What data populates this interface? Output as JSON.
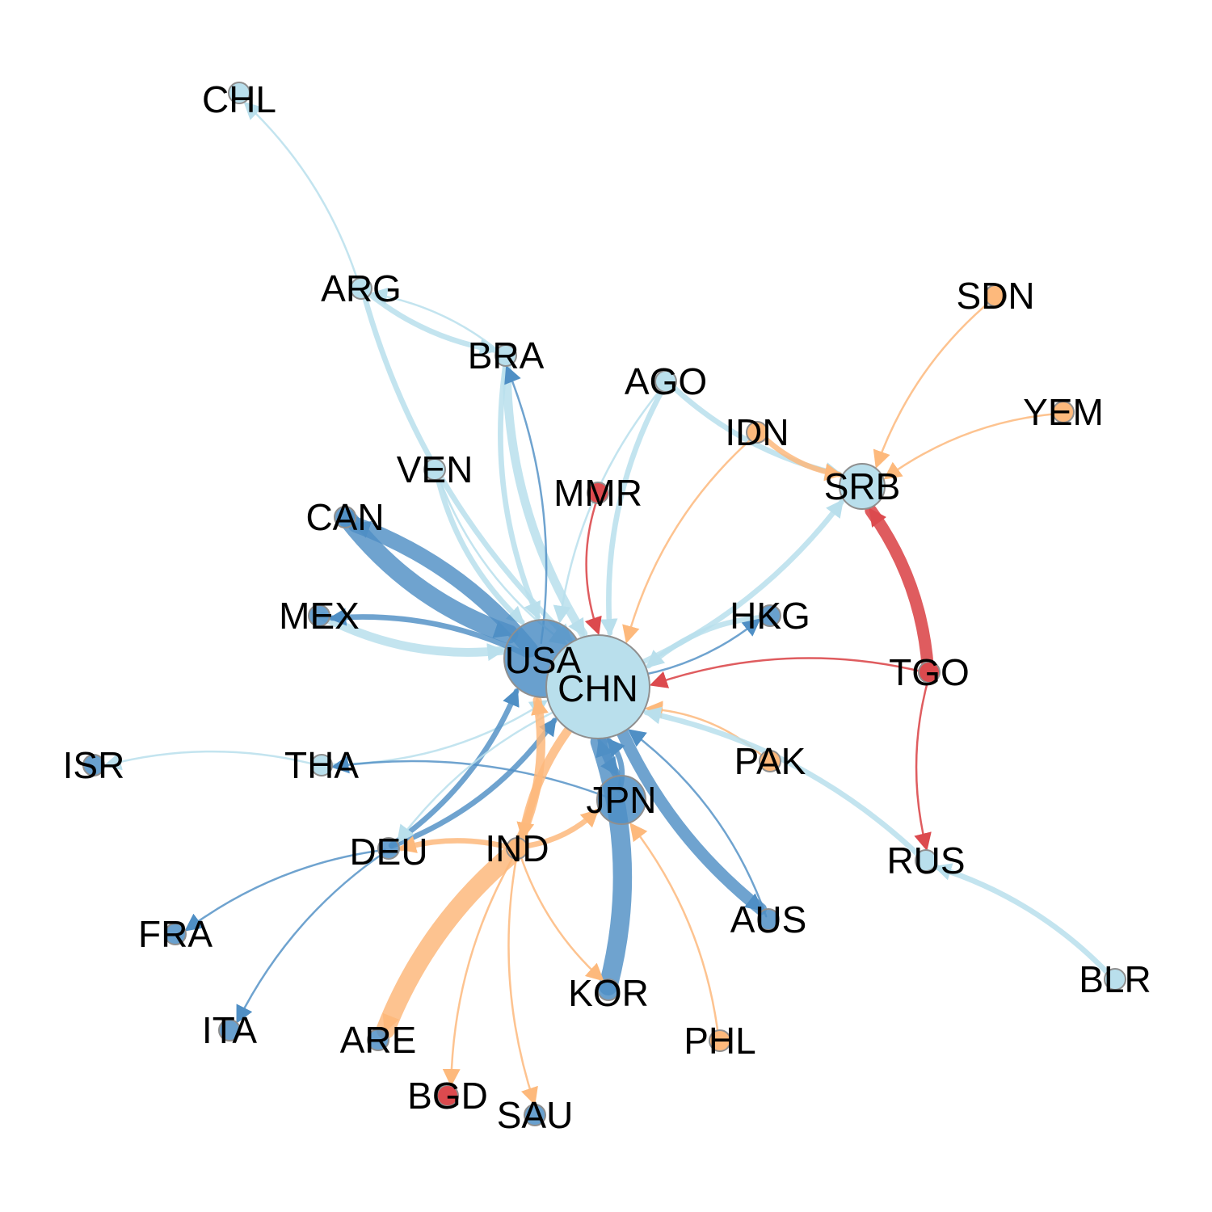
{
  "colors": {
    "lightblue": "#b9dfec",
    "steelblue": "#4f8fc5",
    "orange": "#fdb97c",
    "red": "#dc4a4e",
    "node_stroke": "#8f8f8f"
  },
  "nodes": [
    {
      "id": "CHL",
      "label": "CHL",
      "color": "lightblue"
    },
    {
      "id": "ARG",
      "label": "ARG",
      "color": "lightblue"
    },
    {
      "id": "BRA",
      "label": "BRA",
      "color": "lightblue"
    },
    {
      "id": "AGO",
      "label": "AGO",
      "color": "lightblue"
    },
    {
      "id": "SDN",
      "label": "SDN",
      "color": "orange"
    },
    {
      "id": "YEM",
      "label": "YEM",
      "color": "orange"
    },
    {
      "id": "IDN",
      "label": "IDN",
      "color": "orange"
    },
    {
      "id": "SRB",
      "label": "SRB",
      "color": "lightblue"
    },
    {
      "id": "VEN",
      "label": "VEN",
      "color": "lightblue"
    },
    {
      "id": "MMR",
      "label": "MMR",
      "color": "red"
    },
    {
      "id": "CAN",
      "label": "CAN",
      "color": "steelblue"
    },
    {
      "id": "MEX",
      "label": "MEX",
      "color": "steelblue"
    },
    {
      "id": "USA",
      "label": "USA",
      "color": "steelblue"
    },
    {
      "id": "CHN",
      "label": "CHN",
      "color": "lightblue"
    },
    {
      "id": "HKG",
      "label": "HKG",
      "color": "steelblue"
    },
    {
      "id": "TGO",
      "label": "TGO",
      "color": "red"
    },
    {
      "id": "ISR",
      "label": "ISR",
      "color": "steelblue"
    },
    {
      "id": "THA",
      "label": "THA",
      "color": "lightblue"
    },
    {
      "id": "PAK",
      "label": "PAK",
      "color": "orange"
    },
    {
      "id": "JPN",
      "label": "JPN",
      "color": "steelblue"
    },
    {
      "id": "DEU",
      "label": "DEU",
      "color": "steelblue"
    },
    {
      "id": "IND",
      "label": "IND",
      "color": "orange"
    },
    {
      "id": "RUS",
      "label": "RUS",
      "color": "lightblue"
    },
    {
      "id": "FRA",
      "label": "FRA",
      "color": "steelblue"
    },
    {
      "id": "AUS",
      "label": "AUS",
      "color": "steelblue"
    },
    {
      "id": "ITA",
      "label": "ITA",
      "color": "steelblue"
    },
    {
      "id": "KOR",
      "label": "KOR",
      "color": "steelblue"
    },
    {
      "id": "BLR",
      "label": "BLR",
      "color": "lightblue"
    },
    {
      "id": "ARE",
      "label": "ARE",
      "color": "steelblue"
    },
    {
      "id": "PHL",
      "label": "PHL",
      "color": "orange"
    },
    {
      "id": "BGD",
      "label": "BGD",
      "color": "red"
    },
    {
      "id": "SAU",
      "label": "SAU",
      "color": "steelblue"
    }
  ],
  "edges": [
    {
      "from": "ARG",
      "to": "CHL",
      "color": "lightblue",
      "weight": 1
    },
    {
      "from": "BRA",
      "to": "ARG",
      "color": "lightblue",
      "weight": 1
    },
    {
      "from": "ARG",
      "to": "BRA",
      "color": "lightblue",
      "weight": 2
    },
    {
      "from": "ARG",
      "to": "CHN",
      "color": "lightblue",
      "weight": 2
    },
    {
      "from": "BRA",
      "to": "USA",
      "color": "lightblue",
      "weight": 2
    },
    {
      "from": "BRA",
      "to": "CHN",
      "color": "lightblue",
      "weight": 3
    },
    {
      "from": "USA",
      "to": "BRA",
      "color": "steelblue",
      "weight": 1
    },
    {
      "from": "AGO",
      "to": "CHN",
      "color": "lightblue",
      "weight": 2
    },
    {
      "from": "AGO",
      "to": "USA",
      "color": "lightblue",
      "weight": 1
    },
    {
      "from": "AGO",
      "to": "SRB",
      "color": "lightblue",
      "weight": 2
    },
    {
      "from": "IDN",
      "to": "SRB",
      "color": "orange",
      "weight": 2
    },
    {
      "from": "IDN",
      "to": "CHN",
      "color": "orange",
      "weight": 1
    },
    {
      "from": "SDN",
      "to": "SRB",
      "color": "orange",
      "weight": 1
    },
    {
      "from": "YEM",
      "to": "SRB",
      "color": "orange",
      "weight": 1
    },
    {
      "from": "CHN",
      "to": "SRB",
      "color": "lightblue",
      "weight": 2
    },
    {
      "from": "TGO",
      "to": "SRB",
      "color": "red",
      "weight": 4
    },
    {
      "from": "TGO",
      "to": "CHN",
      "color": "red",
      "weight": 1
    },
    {
      "from": "TGO",
      "to": "RUS",
      "color": "red",
      "weight": 1
    },
    {
      "from": "MMR",
      "to": "CHN",
      "color": "red",
      "weight": 1
    },
    {
      "from": "VEN",
      "to": "USA",
      "color": "lightblue",
      "weight": 2
    },
    {
      "from": "VEN",
      "to": "CHN",
      "color": "lightblue",
      "weight": 1
    },
    {
      "from": "USA",
      "to": "CAN",
      "color": "steelblue",
      "weight": 5
    },
    {
      "from": "CAN",
      "to": "USA",
      "color": "steelblue",
      "weight": 6
    },
    {
      "from": "MEX",
      "to": "USA",
      "color": "lightblue",
      "weight": 3
    },
    {
      "from": "USA",
      "to": "MEX",
      "color": "steelblue",
      "weight": 2
    },
    {
      "from": "HKG",
      "to": "CHN",
      "color": "lightblue",
      "weight": 2
    },
    {
      "from": "CHN",
      "to": "HKG",
      "color": "steelblue",
      "weight": 1
    },
    {
      "from": "PAK",
      "to": "CHN",
      "color": "orange",
      "weight": 1
    },
    {
      "from": "RUS",
      "to": "CHN",
      "color": "lightblue",
      "weight": 2
    },
    {
      "from": "BLR",
      "to": "RUS",
      "color": "lightblue",
      "weight": 2
    },
    {
      "from": "THA",
      "to": "ISR",
      "color": "lightblue",
      "weight": 1
    },
    {
      "from": "THA",
      "to": "CHN",
      "color": "lightblue",
      "weight": 1
    },
    {
      "from": "JPN",
      "to": "THA",
      "color": "steelblue",
      "weight": 1
    },
    {
      "from": "CHN",
      "to": "JPN",
      "color": "steelblue",
      "weight": 3
    },
    {
      "from": "JPN",
      "to": "CHN",
      "color": "steelblue",
      "weight": 2
    },
    {
      "from": "KOR",
      "to": "CHN",
      "color": "steelblue",
      "weight": 6
    },
    {
      "from": "AUS",
      "to": "CHN",
      "color": "steelblue",
      "weight": 1
    },
    {
      "from": "CHN",
      "to": "AUS",
      "color": "steelblue",
      "weight": 4
    },
    {
      "from": "DEU",
      "to": "USA",
      "color": "steelblue",
      "weight": 2
    },
    {
      "from": "DEU",
      "to": "CHN",
      "color": "steelblue",
      "weight": 2
    },
    {
      "from": "CHN",
      "to": "DEU",
      "color": "lightblue",
      "weight": 1
    },
    {
      "from": "DEU",
      "to": "FRA",
      "color": "steelblue",
      "weight": 1
    },
    {
      "from": "DEU",
      "to": "ITA",
      "color": "steelblue",
      "weight": 1
    },
    {
      "from": "IND",
      "to": "DEU",
      "color": "orange",
      "weight": 2
    },
    {
      "from": "IND",
      "to": "JPN",
      "color": "orange",
      "weight": 2
    },
    {
      "from": "IND",
      "to": "USA",
      "color": "orange",
      "weight": 3
    },
    {
      "from": "CHN",
      "to": "IND",
      "color": "orange",
      "weight": 3
    },
    {
      "from": "IND",
      "to": "ARE",
      "color": "orange",
      "weight": 6
    },
    {
      "from": "IND",
      "to": "BGD",
      "color": "orange",
      "weight": 1
    },
    {
      "from": "IND",
      "to": "SAU",
      "color": "orange",
      "weight": 1
    },
    {
      "from": "IND",
      "to": "KOR",
      "color": "orange",
      "weight": 1
    },
    {
      "from": "PHL",
      "to": "JPN",
      "color": "orange",
      "weight": 1
    }
  ]
}
